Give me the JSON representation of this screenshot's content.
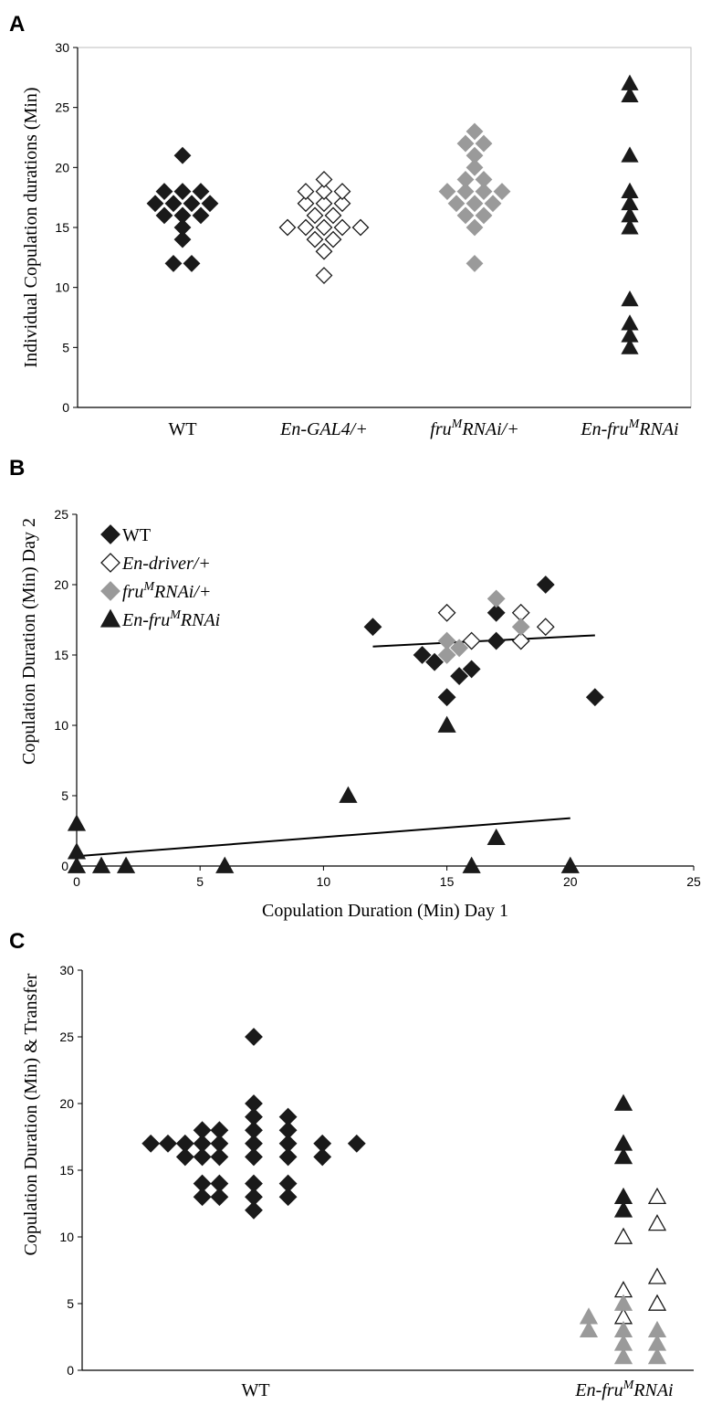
{
  "panels": {
    "A": {
      "letter": "A"
    },
    "B": {
      "letter": "B"
    },
    "C": {
      "letter": "C"
    }
  },
  "colors": {
    "black": "#1a1a1a",
    "gray": "#9a9a9a",
    "open": "#ffffff",
    "axis": "#000000",
    "frame": "#bdbdbd"
  },
  "chart_data": [
    {
      "panel": "A",
      "type": "scatter",
      "ylabel": "Individual Copulation durations (Min)",
      "xlabel": "",
      "ylim": [
        0,
        30
      ],
      "yticks": [
        0,
        5,
        10,
        15,
        20,
        25,
        30
      ],
      "categories": [
        {
          "base": "WT",
          "sup": "",
          "rest": "",
          "italic": false
        },
        {
          "base": "En-GAL4/+",
          "sup": "",
          "rest": "",
          "italic": true
        },
        {
          "base": "fru",
          "sup": "M",
          "rest": "RNAi/+",
          "italic": true
        },
        {
          "base": "En-fru",
          "sup": "M",
          "rest": "RNAi",
          "italic": true
        }
      ],
      "series": [
        {
          "category": "WT",
          "marker": "diamond",
          "fill": "black",
          "values": [
            21,
            18,
            18,
            18,
            17,
            17,
            17,
            17,
            16,
            16,
            16,
            15,
            14,
            12,
            12
          ]
        },
        {
          "category": "En-GAL4/+",
          "marker": "diamond",
          "fill": "open",
          "values": [
            19,
            18,
            18,
            18,
            17,
            17,
            17,
            16,
            16,
            15,
            15,
            15,
            15,
            15,
            14,
            14,
            13,
            11
          ]
        },
        {
          "category": "fruMRNAi/+",
          "marker": "diamond",
          "fill": "gray",
          "values": [
            23,
            22,
            22,
            21,
            20,
            19,
            19,
            18,
            18,
            18,
            18,
            17,
            17,
            17,
            16,
            16,
            15,
            12
          ]
        },
        {
          "category": "En-fruMRNAi",
          "marker": "triangle",
          "fill": "black",
          "values": [
            27,
            26,
            21,
            18,
            17,
            16,
            15,
            9,
            7,
            6,
            5
          ]
        }
      ]
    },
    {
      "panel": "B",
      "type": "scatter",
      "xlabel": "Copulation Duration (Min) Day 1",
      "ylabel": "Copulation Duration (Min) Day 2",
      "xlim": [
        0,
        25
      ],
      "ylim": [
        0,
        25
      ],
      "xticks": [
        0,
        5,
        10,
        15,
        20,
        25
      ],
      "yticks": [
        0,
        5,
        10,
        15,
        20,
        25
      ],
      "legend_position": "top-left",
      "series": [
        {
          "name": "WT",
          "name_base": "WT",
          "name_sup": "",
          "name_rest": "",
          "italic": false,
          "marker": "diamond",
          "fill": "black",
          "points": [
            [
              12,
              17
            ],
            [
              14,
              15
            ],
            [
              14.5,
              14.5
            ],
            [
              15,
              12
            ],
            [
              15.5,
              13.5
            ],
            [
              16,
              14
            ],
            [
              17,
              18
            ],
            [
              17,
              16
            ],
            [
              19,
              20
            ],
            [
              21,
              12
            ]
          ]
        },
        {
          "name": "En-driver/+",
          "name_base": "En-driver/+",
          "name_sup": "",
          "name_rest": "",
          "italic": true,
          "marker": "diamond",
          "fill": "open",
          "points": [
            [
              15,
              18
            ],
            [
              16,
              16
            ],
            [
              18,
              18
            ],
            [
              18,
              16
            ],
            [
              19,
              17
            ]
          ]
        },
        {
          "name": "fruMRNAi/+",
          "name_base": "fru",
          "name_sup": "M",
          "name_rest": "RNAi/+",
          "italic": true,
          "marker": "diamond",
          "fill": "gray",
          "points": [
            [
              15,
              16
            ],
            [
              15,
              15
            ],
            [
              15.5,
              15.5
            ],
            [
              17,
              19
            ],
            [
              18,
              17
            ]
          ]
        },
        {
          "name": "En-fruMRNAi",
          "name_base": "En-fru",
          "name_sup": "M",
          "name_rest": "RNAi",
          "italic": true,
          "marker": "triangle",
          "fill": "black",
          "points": [
            [
              0,
              3
            ],
            [
              0,
              1
            ],
            [
              0,
              0
            ],
            [
              1,
              0
            ],
            [
              2,
              0
            ],
            [
              6,
              0
            ],
            [
              11,
              5
            ],
            [
              15,
              10
            ],
            [
              16,
              0
            ],
            [
              17,
              2
            ],
            [
              20,
              0
            ]
          ]
        }
      ],
      "trendlines": [
        {
          "from": [
            12,
            15.6
          ],
          "to": [
            21,
            16.4
          ]
        },
        {
          "from": [
            0,
            0.7
          ],
          "to": [
            20,
            3.4
          ]
        }
      ]
    },
    {
      "panel": "C",
      "type": "scatter",
      "ylabel": "Copulation Duration (Min) & Transfer",
      "xlabel": "",
      "ylim": [
        0,
        30
      ],
      "yticks": [
        0,
        5,
        10,
        15,
        20,
        25,
        30
      ],
      "categories": [
        {
          "base": "WT",
          "sup": "",
          "rest": "",
          "italic": false
        },
        {
          "base": "En-fru",
          "sup": "M",
          "rest": "RNAi",
          "italic": true
        }
      ],
      "wt_points": [
        [
          -6,
          17
        ],
        [
          -5,
          17
        ],
        [
          -4,
          17
        ],
        [
          -4,
          16
        ],
        [
          -3,
          18
        ],
        [
          -3,
          17
        ],
        [
          -3,
          16
        ],
        [
          -3,
          14
        ],
        [
          -3,
          13
        ],
        [
          -2,
          18
        ],
        [
          -2,
          17
        ],
        [
          -2,
          16
        ],
        [
          -2,
          14
        ],
        [
          -2,
          13
        ],
        [
          0,
          25
        ],
        [
          0,
          20
        ],
        [
          0,
          19
        ],
        [
          0,
          18
        ],
        [
          0,
          17
        ],
        [
          0,
          16
        ],
        [
          0,
          14
        ],
        [
          0,
          13
        ],
        [
          0,
          12
        ],
        [
          2,
          19
        ],
        [
          2,
          18
        ],
        [
          2,
          17
        ],
        [
          2,
          16
        ],
        [
          2,
          14
        ],
        [
          2,
          13
        ],
        [
          4,
          17
        ],
        [
          4,
          16
        ],
        [
          6,
          17
        ]
      ],
      "rnai_points": [
        {
          "slot": 0,
          "fill": "black",
          "value": 20
        },
        {
          "slot": 0,
          "fill": "black",
          "value": 17
        },
        {
          "slot": 0,
          "fill": "black",
          "value": 16
        },
        {
          "slot": 0,
          "fill": "black",
          "value": 13
        },
        {
          "slot": 0,
          "fill": "black",
          "value": 12
        },
        {
          "slot": 0,
          "fill": "open",
          "value": 10
        },
        {
          "slot": 0,
          "fill": "open",
          "value": 6
        },
        {
          "slot": 0,
          "fill": "open",
          "value": 4
        },
        {
          "slot": 0,
          "fill": "gray",
          "value": 5
        },
        {
          "slot": 0,
          "fill": "gray",
          "value": 3
        },
        {
          "slot": 0,
          "fill": "gray",
          "value": 2
        },
        {
          "slot": 0,
          "fill": "gray",
          "value": 1
        },
        {
          "slot": -1,
          "fill": "gray",
          "value": 4
        },
        {
          "slot": -1,
          "fill": "gray",
          "value": 3
        },
        {
          "slot": 1,
          "fill": "open",
          "value": 13
        },
        {
          "slot": 1,
          "fill": "open",
          "value": 11
        },
        {
          "slot": 1,
          "fill": "open",
          "value": 7
        },
        {
          "slot": 1,
          "fill": "open",
          "value": 5
        },
        {
          "slot": 1,
          "fill": "gray",
          "value": 3
        },
        {
          "slot": 1,
          "fill": "gray",
          "value": 2
        },
        {
          "slot": 1,
          "fill": "gray",
          "value": 1
        }
      ]
    }
  ]
}
